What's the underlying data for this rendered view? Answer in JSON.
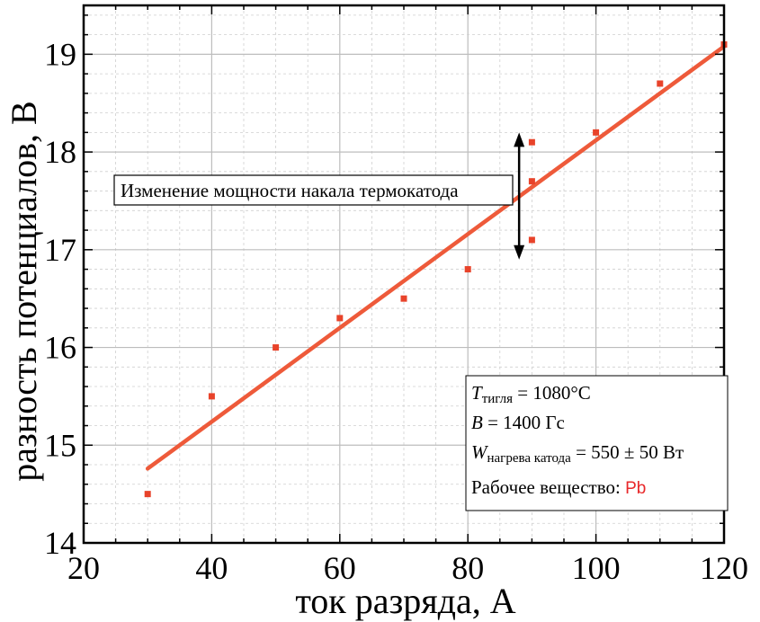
{
  "chart_data": {
    "type": "scatter",
    "xlabel": "ток разряда, А",
    "ylabel": "разность потенциалов, В",
    "xlim": [
      20,
      120
    ],
    "ylim": [
      14,
      19.5
    ],
    "x_ticks": [
      "20",
      "40",
      "60",
      "80",
      "100",
      "120"
    ],
    "y_ticks": [
      "14",
      "15",
      "16",
      "17",
      "18",
      "19"
    ],
    "grid": true,
    "colors": {
      "series": "#e8432a",
      "fit": "#ee5a3a",
      "axes": "#000000",
      "grid_major": "#bdbdbd",
      "grid_minor": "#cfcfcf"
    },
    "series": [
      {
        "x": [
          30,
          40,
          50,
          60,
          70,
          80,
          90,
          90,
          90,
          100,
          110,
          120
        ],
        "y": [
          14.5,
          15.5,
          16.0,
          16.3,
          16.5,
          16.8,
          18.1,
          17.7,
          17.1,
          18.2,
          18.7,
          19.1
        ]
      }
    ],
    "fit_line": {
      "x": [
        30,
        120
      ],
      "y": [
        14.76,
        19.08
      ]
    },
    "annotation": {
      "text": "Изменение мощности накала термокатода",
      "arrow_x": 88,
      "arrow_y_range": [
        16.9,
        18.2
      ]
    },
    "legend_box": {
      "placement": "bottom-right",
      "line1": {
        "var": "T",
        "sub": "тигля",
        "rest": " = 1080°C"
      },
      "line2": {
        "var": "B",
        "rest": " = 1400 Гс"
      },
      "line3": {
        "var": "W",
        "sub": "нагрева катода",
        "rest": " = 550 ± 50 Вт"
      },
      "line4": {
        "label": "Рабочее вещество: ",
        "value": "Pb",
        "value_color": "#e8282a"
      }
    }
  }
}
